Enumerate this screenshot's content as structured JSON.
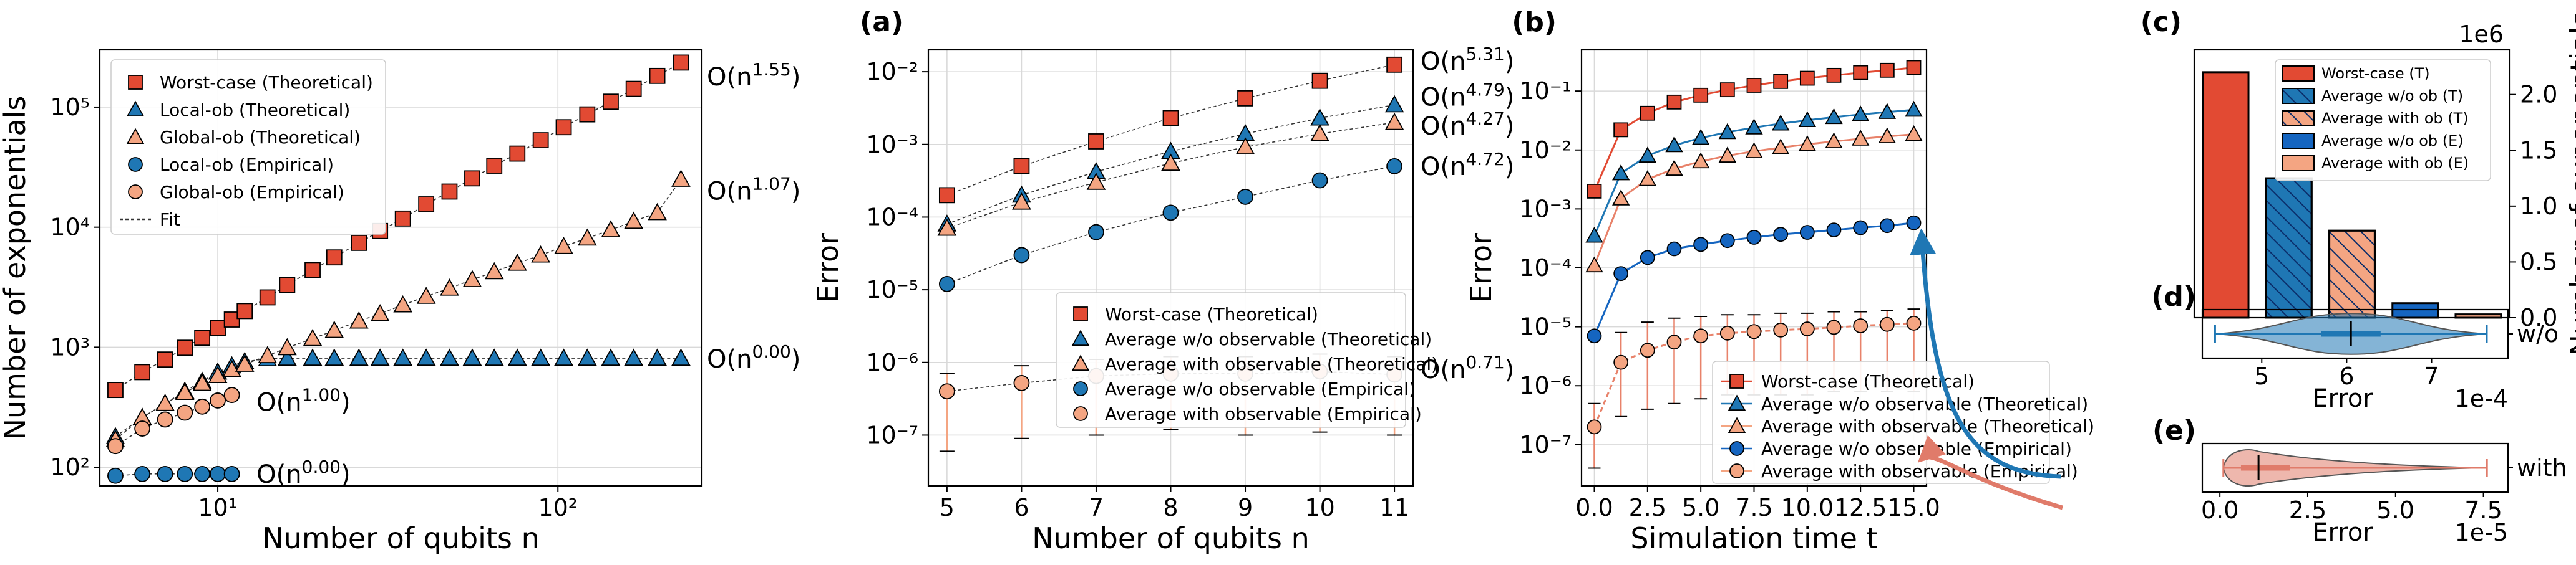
{
  "colors": {
    "red": "#e24a33",
    "red_light": "#f4a582",
    "blue": "#1f77b4",
    "blue_dark": "#1565c0",
    "blue_light": "#6fa8dc",
    "fit": "#333333"
  },
  "chart_data": [
    {
      "id": "left",
      "type": "scatter",
      "title": "",
      "xlabel": "Number of qubits n",
      "ylabel": "Number of exponentials",
      "xscale": "log",
      "yscale": "log",
      "xlim": [
        4.5,
        265
      ],
      "ylim": [
        70,
        300000
      ],
      "xticks": [
        {
          "v": 10,
          "label": "10¹"
        },
        {
          "v": 100,
          "label": "10²"
        }
      ],
      "yticks": [
        {
          "v": 100,
          "label": "10²"
        },
        {
          "v": 1000,
          "label": "10³"
        },
        {
          "v": 10000,
          "label": "10⁴"
        },
        {
          "v": 100000,
          "label": "10⁵"
        }
      ],
      "grid": true,
      "legend_position": "top-left",
      "legend": [
        "Worst-case (Theoretical)",
        "Local-ob (Theoretical)",
        "Global-ob (Theoretical)",
        "Local-ob (Empirical)",
        "Global-ob (Empirical)",
        "Fit"
      ],
      "series": [
        {
          "name": "Worst-case (Theoretical)",
          "marker": "square",
          "color": "#e24a33",
          "x": [
            5,
            6,
            7,
            8,
            9,
            10,
            11,
            12,
            14,
            16,
            19,
            22,
            26,
            30,
            35,
            41,
            48,
            56,
            65,
            76,
            89,
            104,
            122,
            143,
            167,
            196,
            230
          ],
          "y": [
            440,
            620,
            790,
            990,
            1200,
            1450,
            1700,
            2000,
            2600,
            3300,
            4400,
            5600,
            7400,
            9300,
            11800,
            15500,
            19800,
            25500,
            32500,
            41000,
            53000,
            68000,
            87000,
            111000,
            142000,
            182000,
            235000
          ]
        },
        {
          "name": "Local-ob (Theoretical)",
          "marker": "triangle",
          "color": "#1f77b4",
          "x": [
            5,
            6,
            7,
            8,
            9,
            10,
            11,
            12,
            14,
            16,
            19,
            22,
            26,
            30,
            35,
            41,
            48,
            56,
            65,
            76,
            89,
            104,
            122,
            143,
            167,
            196,
            230
          ],
          "y": [
            180,
            260,
            340,
            430,
            520,
            620,
            700,
            760,
            800,
            810,
            810,
            810,
            810,
            810,
            810,
            810,
            810,
            810,
            810,
            810,
            810,
            810,
            810,
            810,
            810,
            810,
            810
          ]
        },
        {
          "name": "Global-ob (Theoretical)",
          "marker": "triangle",
          "color": "#f4a582",
          "x": [
            5,
            6,
            7,
            8,
            9,
            10,
            11,
            12,
            14,
            16,
            19,
            22,
            26,
            30,
            35,
            41,
            48,
            56,
            65,
            76,
            89,
            104,
            122,
            143,
            167,
            196,
            230
          ],
          "y": [
            170,
            260,
            340,
            420,
            500,
            580,
            650,
            720,
            850,
            990,
            1180,
            1380,
            1650,
            1900,
            2250,
            2650,
            3100,
            3650,
            4250,
            5000,
            5850,
            6900,
            8100,
            9500,
            11200,
            13200,
            25000
          ]
        },
        {
          "name": "Local-ob (Empirical)",
          "marker": "circle",
          "color": "#1f77b4",
          "x": [
            5,
            6,
            7,
            8,
            9,
            10,
            11
          ],
          "y": [
            85,
            88,
            88,
            88,
            88,
            88,
            88
          ]
        },
        {
          "name": "Global-ob (Empirical)",
          "marker": "circle",
          "color": "#f4a582",
          "x": [
            5,
            6,
            7,
            8,
            9,
            10,
            11
          ],
          "y": [
            150,
            210,
            250,
            285,
            320,
            360,
            400
          ]
        }
      ],
      "annotations": [
        {
          "text": "O(n^{1.55})",
          "x": 250,
          "y": 180000
        },
        {
          "text": "O(n^{1.07})",
          "x": 250,
          "y": 20000
        },
        {
          "text": "O(n^{0.00})",
          "x": 250,
          "y": 800
        },
        {
          "text": "O(n^{1.00})",
          "x": 13,
          "y": 350
        },
        {
          "text": "O(n^{0.00})",
          "x": 13,
          "y": 88
        }
      ]
    },
    {
      "id": "a",
      "panel_label": "(a)",
      "type": "scatter",
      "title": "",
      "xlabel": "Number of qubits n",
      "ylabel": "Error",
      "xscale": "linear",
      "yscale": "log",
      "xlim": [
        4.75,
        11.25
      ],
      "ylim": [
        2e-08,
        0.02
      ],
      "xticks": [
        {
          "v": 5,
          "label": "5"
        },
        {
          "v": 6,
          "label": "6"
        },
        {
          "v": 7,
          "label": "7"
        },
        {
          "v": 8,
          "label": "8"
        },
        {
          "v": 9,
          "label": "9"
        },
        {
          "v": 10,
          "label": "10"
        },
        {
          "v": 11,
          "label": "11"
        }
      ],
      "yticks": [
        {
          "v": 1e-07,
          "label": "10⁻⁷"
        },
        {
          "v": 1e-06,
          "label": "10⁻⁶"
        },
        {
          "v": 1e-05,
          "label": "10⁻⁵"
        },
        {
          "v": 0.0001,
          "label": "10⁻⁴"
        },
        {
          "v": 0.001,
          "label": "10⁻³"
        },
        {
          "v": 0.01,
          "label": "10⁻²"
        }
      ],
      "grid": true,
      "legend_position": "center-right",
      "legend": [
        "Worst-case (Theoretical)",
        "Average w/o observable (Theoretical)",
        "Average with observable (Theoretical)",
        "Average w/o observable (Empirical)",
        "Average with observable (Empirical)"
      ],
      "series": [
        {
          "name": "Worst-case (Theoretical)",
          "marker": "square",
          "color": "#e24a33",
          "x": [
            5,
            6,
            7,
            8,
            9,
            10,
            11
          ],
          "y": [
            0.0002,
            0.0005,
            0.0011,
            0.0023,
            0.0043,
            0.0075,
            0.0125
          ]
        },
        {
          "name": "Average w/o observable (Theoretical)",
          "marker": "triangle",
          "color": "#1f77b4",
          "x": [
            5,
            6,
            7,
            8,
            9,
            10,
            11
          ],
          "y": [
            8e-05,
            0.0002,
            0.00042,
            0.0008,
            0.0014,
            0.0023,
            0.0035
          ]
        },
        {
          "name": "Average with observable (Theoretical)",
          "marker": "triangle",
          "color": "#f4a582",
          "x": [
            5,
            6,
            7,
            8,
            9,
            10,
            11
          ],
          "y": [
            7e-05,
            0.00016,
            0.0003,
            0.00055,
            0.00092,
            0.0014,
            0.002
          ]
        },
        {
          "name": "Average w/o observable (Empirical)",
          "marker": "circle",
          "color": "#1f77b4",
          "x": [
            5,
            6,
            7,
            8,
            9,
            10,
            11
          ],
          "y": [
            1.2e-05,
            3e-05,
            6.2e-05,
            0.000115,
            0.00019,
            0.00032,
            0.0005
          ]
        },
        {
          "name": "Average with observable (Empirical)",
          "marker": "circle",
          "color": "#f4a582",
          "x": [
            5,
            6,
            7,
            8,
            9,
            10,
            11
          ],
          "y": [
            4e-07,
            5.2e-07,
            6.5e-07,
            7e-07,
            7e-07,
            7.5e-07,
            6.8e-07
          ],
          "err_low": [
            6e-08,
            9e-08,
            1e-07,
            1.2e-07,
            1e-07,
            1.1e-07,
            1e-07
          ],
          "err_high": [
            7e-07,
            9e-07,
            1.1e-06,
            1.2e-06,
            1.2e-06,
            1.3e-06,
            1.2e-06
          ]
        }
      ],
      "annotations": [
        {
          "text": "O(n^{5.31})",
          "x": 11.3,
          "y": 0.014
        },
        {
          "text": "O(n^{4.79})",
          "x": 11.3,
          "y": 0.0045
        },
        {
          "text": "O(n^{4.27})",
          "x": 11.3,
          "y": 0.0018
        },
        {
          "text": "O(n^{4.72})",
          "x": 11.3,
          "y": 0.0005
        },
        {
          "text": "O(n^{0.71})",
          "x": 11.3,
          "y": 8e-07
        }
      ]
    },
    {
      "id": "b",
      "panel_label": "(b)",
      "type": "line",
      "title": "",
      "xlabel": "Simulation time t",
      "ylabel": "Error",
      "xscale": "linear",
      "yscale": "log",
      "xlim": [
        -0.6,
        15.6
      ],
      "ylim": [
        2e-08,
        0.5
      ],
      "xticks": [
        {
          "v": 0,
          "label": "0.0"
        },
        {
          "v": 2.5,
          "label": "2.5"
        },
        {
          "v": 5,
          "label": "5.0"
        },
        {
          "v": 7.5,
          "label": "7.5"
        },
        {
          "v": 10,
          "label": "10.0"
        },
        {
          "v": 12.5,
          "label": "12.5"
        },
        {
          "v": 15,
          "label": "15.0"
        }
      ],
      "yticks": [
        {
          "v": 1e-07,
          "label": "10⁻⁷"
        },
        {
          "v": 1e-06,
          "label": "10⁻⁶"
        },
        {
          "v": 1e-05,
          "label": "10⁻⁵"
        },
        {
          "v": 0.0001,
          "label": "10⁻⁴"
        },
        {
          "v": 0.001,
          "label": "10⁻³"
        },
        {
          "v": 0.01,
          "label": "10⁻²"
        },
        {
          "v": 0.1,
          "label": "10⁻¹"
        }
      ],
      "grid": true,
      "legend_position": "bottom-right",
      "legend": [
        "Worst-case (Theoretical)",
        "Average w/o observable (Theoretical)",
        "Average with observable (Theoretical)",
        "Average w/o observable (Empirical)",
        "Average with observable (Empirical)"
      ],
      "series": [
        {
          "name": "Worst-case (Theoretical)",
          "marker": "square",
          "color": "#e24a33",
          "x": [
            0,
            1.25,
            2.5,
            3.75,
            5,
            6.25,
            7.5,
            8.75,
            10,
            11.25,
            12.5,
            13.75,
            15
          ],
          "y": [
            0.002,
            0.022,
            0.042,
            0.065,
            0.085,
            0.105,
            0.125,
            0.145,
            0.165,
            0.185,
            0.205,
            0.225,
            0.25
          ]
        },
        {
          "name": "Average w/o observable (Theoretical)",
          "marker": "triangle",
          "color": "#1f77b4",
          "x": [
            0,
            1.25,
            2.5,
            3.75,
            5,
            6.25,
            7.5,
            8.75,
            10,
            11.25,
            12.5,
            13.75,
            15
          ],
          "y": [
            0.00035,
            0.004,
            0.008,
            0.012,
            0.016,
            0.02,
            0.024,
            0.028,
            0.032,
            0.036,
            0.04,
            0.044,
            0.048
          ]
        },
        {
          "name": "Average with observable (Theoretical)",
          "marker": "triangle",
          "color": "#f4a582",
          "x": [
            0,
            1.25,
            2.5,
            3.75,
            5,
            6.25,
            7.5,
            8.75,
            10,
            11.25,
            12.5,
            13.75,
            15
          ],
          "y": [
            0.00011,
            0.0015,
            0.0032,
            0.0048,
            0.0064,
            0.008,
            0.0095,
            0.011,
            0.0125,
            0.014,
            0.0155,
            0.017,
            0.0185
          ]
        },
        {
          "name": "Average w/o observable (Empirical)",
          "marker": "circle",
          "color": "#1565c0",
          "x": [
            0,
            1.25,
            2.5,
            3.75,
            5,
            6.25,
            7.5,
            8.75,
            10,
            11.25,
            12.5,
            13.75,
            15
          ],
          "y": [
            7e-06,
            8e-05,
            0.00015,
            0.00021,
            0.00025,
            0.00029,
            0.00033,
            0.00037,
            0.0004,
            0.00044,
            0.00048,
            0.00052,
            0.00058
          ]
        },
        {
          "name": "Average with observable (Empirical)",
          "marker": "circle",
          "color": "#f4a582",
          "x": [
            0,
            1.25,
            2.5,
            3.75,
            5,
            6.25,
            7.5,
            8.75,
            10,
            11.25,
            12.5,
            13.75,
            15
          ],
          "y": [
            2e-07,
            2.5e-06,
            4e-06,
            5.5e-06,
            7e-06,
            7.8e-06,
            8.3e-06,
            8.8e-06,
            9.2e-06,
            9.8e-06,
            1.04e-05,
            1.1e-05,
            1.15e-05
          ],
          "err_low": [
            4e-08,
            3e-07,
            4e-07,
            5e-07,
            6e-07,
            7e-07,
            7e-07,
            7e-07,
            7e-07,
            8e-07,
            8e-07,
            8e-07,
            8e-07
          ],
          "err_high": [
            5e-07,
            8e-06,
            1.2e-05,
            1.4e-05,
            1.5e-05,
            1.6e-05,
            1.6e-05,
            1.7e-05,
            1.7e-05,
            1.8e-05,
            1.8e-05,
            1.9e-05,
            2e-05
          ]
        }
      ]
    },
    {
      "id": "c",
      "panel_label": "(c)",
      "type": "bar",
      "title": "",
      "xlabel": "",
      "ylabel": "Number of exponentials",
      "y_offset_label": "1e6",
      "ylim": [
        0,
        2.4
      ],
      "yticks": [
        {
          "v": 0,
          "label": "0.0"
        },
        {
          "v": 0.5,
          "label": "0.5"
        },
        {
          "v": 1,
          "label": "1.0"
        },
        {
          "v": 1.5,
          "label": "1.5"
        },
        {
          "v": 2,
          "label": "2.0"
        }
      ],
      "legend_position": "top-right",
      "categories": [
        "Worst-case (T)",
        "Average w/o ob (T)",
        "Average with ob (T)",
        "Average w/o ob (E)",
        "Average with ob (E)"
      ],
      "values": [
        2.2,
        1.25,
        0.78,
        0.13,
        0.03
      ],
      "bar_colors": [
        "#e24a33",
        "#1f77b4",
        "#f4a582",
        "#1565c0",
        "#f4a582"
      ],
      "hatched": [
        false,
        true,
        true,
        false,
        false
      ]
    },
    {
      "id": "d",
      "panel_label": "(d)",
      "type": "violin",
      "xlabel": "Error",
      "x_offset_label": "1e-4",
      "xlim": [
        4.3,
        7.9
      ],
      "xticks": [
        {
          "v": 5,
          "label": "5"
        },
        {
          "v": 6,
          "label": "6"
        },
        {
          "v": 7,
          "label": "7"
        }
      ],
      "category": "w/o",
      "min": 4.45,
      "max": 7.65,
      "q1": 5.7,
      "median": 6.05,
      "q3": 6.4,
      "color": "#1f77b4"
    },
    {
      "id": "e",
      "panel_label": "(e)",
      "type": "violin",
      "xlabel": "Error",
      "x_offset_label": "1e-5",
      "xlim": [
        -0.5,
        8.2
      ],
      "xticks": [
        {
          "v": 0,
          "label": "0.0"
        },
        {
          "v": 2.5,
          "label": "2.5"
        },
        {
          "v": 5,
          "label": "5.0"
        },
        {
          "v": 7.5,
          "label": "7.5"
        }
      ],
      "category": "with",
      "min": 0.1,
      "max": 7.6,
      "q1": 0.6,
      "median": 1.1,
      "q3": 2.0,
      "color": "#e07b6a"
    }
  ]
}
